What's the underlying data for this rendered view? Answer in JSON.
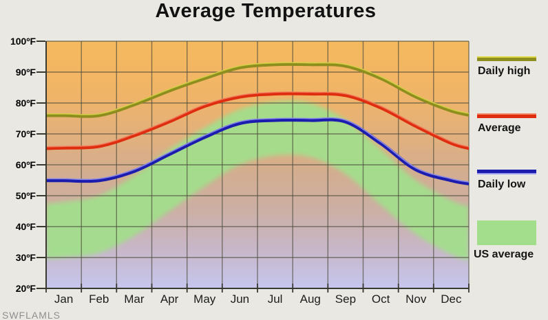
{
  "title": "Average Temperatures",
  "watermark": "SWFLAMLS",
  "legend": {
    "position": "right",
    "items": [
      {
        "label": "Daily high",
        "type": "line",
        "color": "#8e8e1f",
        "highlight": "#d9d948"
      },
      {
        "label": "Average",
        "type": "line",
        "color": "#df2d10",
        "highlight": "#f28a66"
      },
      {
        "label": "Daily low",
        "type": "line",
        "color": "#1c1cae",
        "highlight": "#9d9df2"
      },
      {
        "label": "US average",
        "type": "area",
        "color": "#a3de8c"
      }
    ]
  },
  "chart_data": {
    "type": "line",
    "title": "Average Temperatures",
    "categories": [
      "Jan",
      "Feb",
      "Mar",
      "Apr",
      "May",
      "Jun",
      "Jul",
      "Aug",
      "Sep",
      "Oct",
      "Nov",
      "Dec"
    ],
    "y_unit": "ºF",
    "ylim": [
      20,
      100
    ],
    "y_ticks": [
      100,
      90,
      80,
      70,
      60,
      50,
      40,
      30,
      20
    ],
    "grid": true,
    "legend_position": "right",
    "series": [
      {
        "name": "Daily high",
        "color": "#8e8e1f",
        "highlight": "#d9d948",
        "width": 5,
        "values": [
          76,
          76,
          79.5,
          84,
          88,
          91.5,
          92.5,
          92.5,
          92,
          88,
          82,
          77.5
        ]
      },
      {
        "name": "Average",
        "color": "#df2d10",
        "highlight": "#f28a66",
        "width": 5,
        "values": [
          65.5,
          66,
          69.5,
          74,
          79,
          82,
          83,
          83,
          82.5,
          78.5,
          72.5,
          67
        ]
      },
      {
        "name": "Daily low",
        "color": "#1c1cae",
        "highlight": "#9d9df2",
        "width": 5.5,
        "values": [
          55,
          55,
          58,
          63.5,
          69,
          73.5,
          74.5,
          74.5,
          74,
          67,
          58.5,
          55
        ]
      }
    ],
    "us_average_band": {
      "name": "US average",
      "color": "#a3de8c",
      "high": [
        48,
        50,
        56.5,
        65,
        72,
        78,
        80.5,
        80,
        74.5,
        65,
        55,
        48.5
      ],
      "low": [
        30,
        31.5,
        37,
        45,
        53,
        60,
        63,
        62.5,
        57,
        47,
        37.5,
        31
      ]
    },
    "background_gradient": [
      "#f5b95e",
      "#f0b468",
      "#e2b07c",
      "#d3ad90",
      "#ccafa4",
      "#c8b6c6",
      "#c6c6ee"
    ],
    "grid_color": "#4c4c3c",
    "axis_color": "#38382e"
  }
}
